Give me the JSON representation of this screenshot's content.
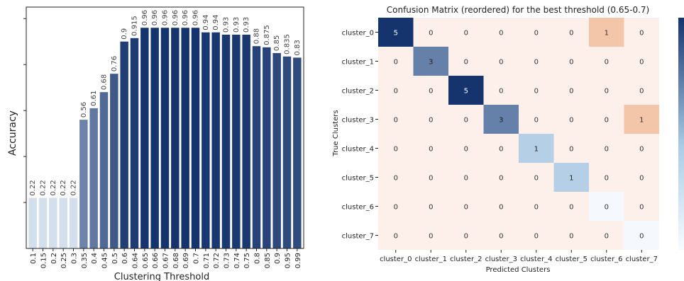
{
  "chart_data": [
    {
      "type": "bar",
      "title": "",
      "xlabel": "Clustering Threshold",
      "ylabel": "Accuracy",
      "ylim": [
        0,
        1.05
      ],
      "categories": [
        "0.1",
        "0.15",
        "0.2",
        "0.25",
        "0.3",
        "0.35",
        "0.4",
        "0.45",
        "0.5",
        "0.6",
        "0.64",
        "0.65",
        "0.66",
        "0.67",
        "0.68",
        "0.69",
        "0.7",
        "0.71",
        "0.72",
        "0.73",
        "0.74",
        "0.75",
        "0.8",
        "0.85",
        "0.9",
        "0.95",
        "0.99"
      ],
      "values": [
        0.22,
        0.22,
        0.22,
        0.22,
        0.22,
        0.56,
        0.61,
        0.68,
        0.76,
        0.9,
        0.915,
        0.96,
        0.96,
        0.96,
        0.96,
        0.96,
        0.96,
        0.94,
        0.94,
        0.93,
        0.93,
        0.93,
        0.88,
        0.875,
        0.85,
        0.835,
        0.83
      ],
      "value_labels": [
        "0.22",
        "0.22",
        "0.22",
        "0.22",
        "0.22",
        "0.56",
        "0.61",
        "0.68",
        "0.76",
        "0.9",
        "0.915",
        "0.96",
        "0.96",
        "0.96",
        "0.96",
        "0.96",
        "0.96",
        "0.94",
        "0.94",
        "0.93",
        "0.93",
        "0.93",
        "0.88",
        "0.875",
        "0.85",
        "0.835",
        "0.83"
      ],
      "color_scale": [
        "#d3dfec",
        "#15336d"
      ],
      "grid": false
    },
    {
      "type": "heatmap",
      "title": "Confusion Matrix (reordered) for the best threshold (0.65-0.7)",
      "xlabel": "Predicted Clusters",
      "ylabel": "True Clusters",
      "x_categories": [
        "cluster_0",
        "cluster_1",
        "cluster_2",
        "cluster_3",
        "cluster_4",
        "cluster_5",
        "cluster_6",
        "cluster_7"
      ],
      "y_categories": [
        "cluster_0",
        "cluster_1",
        "cluster_2",
        "cluster_3",
        "cluster_4",
        "cluster_5",
        "cluster_6",
        "cluster_7"
      ],
      "matrix": [
        [
          5,
          0,
          0,
          0,
          0,
          0,
          1,
          0
        ],
        [
          0,
          3,
          0,
          0,
          0,
          0,
          0,
          0
        ],
        [
          0,
          0,
          5,
          0,
          0,
          0,
          0,
          0
        ],
        [
          0,
          0,
          0,
          3,
          0,
          0,
          0,
          1
        ],
        [
          0,
          0,
          0,
          0,
          1,
          0,
          0,
          0
        ],
        [
          0,
          0,
          0,
          0,
          0,
          1,
          0,
          0
        ],
        [
          0,
          0,
          0,
          0,
          0,
          0,
          0,
          0
        ],
        [
          0,
          0,
          0,
          0,
          0,
          0,
          0,
          0
        ]
      ],
      "colors": {
        "offdiag_zero": "#fdf0ea",
        "offdiag_error": "#f3c6aa",
        "diag_zero": "#f5f9fd",
        "diag_low": "#b4cfe6",
        "diag_high": "#15336d"
      },
      "colorbar_color": "#15336d"
    }
  ]
}
